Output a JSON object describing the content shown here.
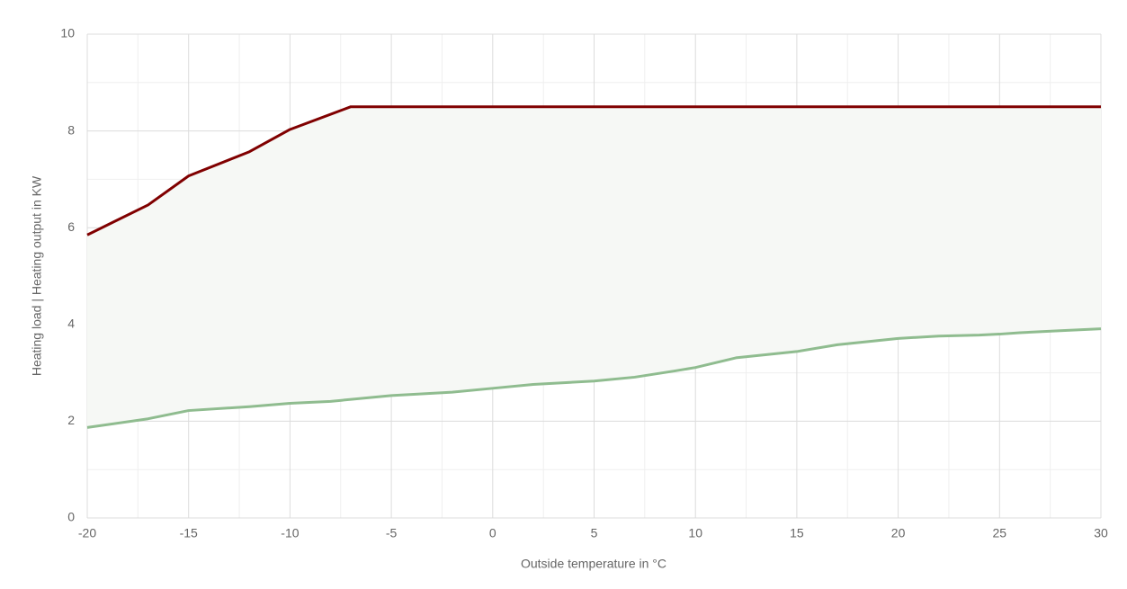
{
  "chart_data": {
    "type": "line",
    "x_label": "Outside temperature in °C",
    "y_label": "Heating load | Heating output in KW",
    "xlim": [
      -20,
      30
    ],
    "xticks": [
      -20,
      -15,
      -10,
      -5,
      0,
      5,
      10,
      15,
      20,
      25,
      30
    ],
    "ylim": [
      0,
      10
    ],
    "yticks": [
      0,
      2,
      4,
      6,
      8,
      10
    ],
    "grid": true,
    "minor_grid": true,
    "fill_between": "#f6f8f5",
    "series": [
      {
        "color": "#800000",
        "x": [
          -20,
          -17,
          -15,
          -12,
          -10,
          -7,
          30
        ],
        "values": [
          5.85,
          6.47,
          7.07,
          7.57,
          8.03,
          8.5,
          8.5
        ]
      },
      {
        "color": "#8fbc8f",
        "x": [
          -20,
          -17,
          -15,
          -12,
          -10,
          -8,
          -5,
          -2,
          0,
          2,
          5,
          7,
          9,
          10,
          12,
          15,
          17,
          20,
          22,
          24,
          25,
          26,
          28,
          30
        ],
        "values": [
          1.87,
          2.05,
          2.22,
          2.3,
          2.37,
          2.41,
          2.53,
          2.6,
          2.68,
          2.76,
          2.83,
          2.91,
          3.04,
          3.11,
          3.31,
          3.44,
          3.58,
          3.71,
          3.76,
          3.78,
          3.8,
          3.83,
          3.87,
          3.91
        ]
      }
    ]
  }
}
